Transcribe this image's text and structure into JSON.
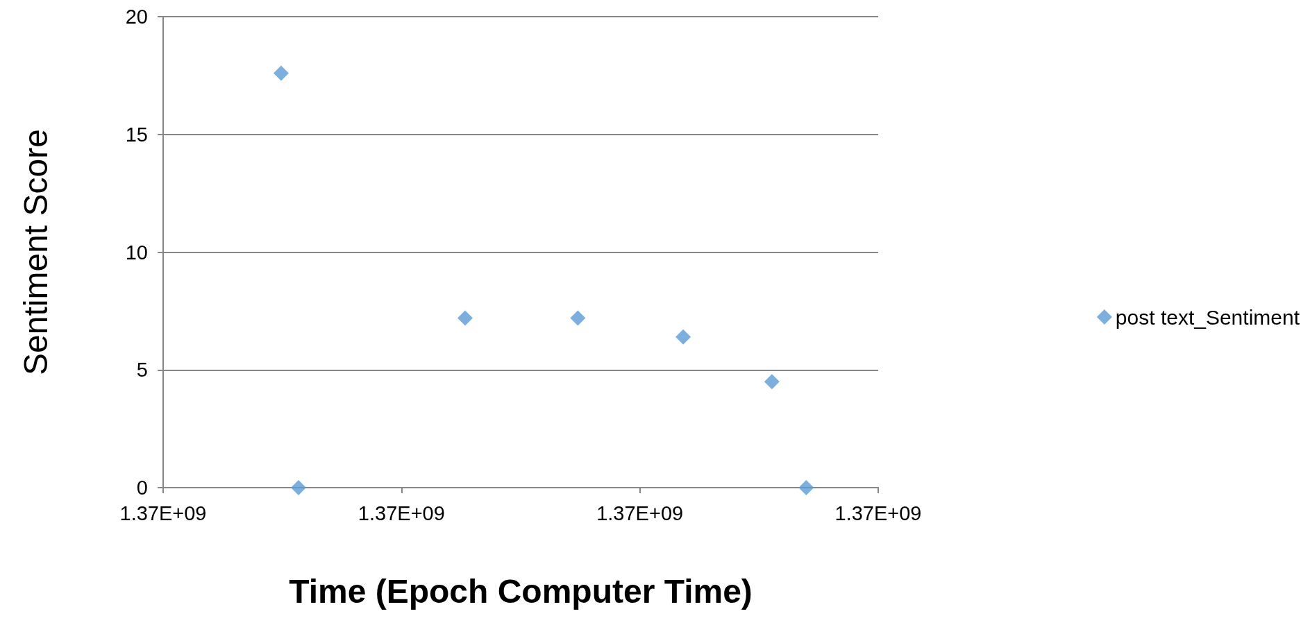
{
  "chart_data": {
    "type": "scatter",
    "xlabel": "Time (Epoch Computer Time)",
    "ylabel": "Sentiment Score",
    "x": [
      1370495000,
      1370568000,
      1371267000,
      1371740000,
      1372182000,
      1372554000,
      1372698000
    ],
    "series": [
      {
        "name": "post text_Sentiment",
        "color": "#5b9bd5",
        "values": [
          17.6,
          0,
          7.2,
          7.2,
          6.4,
          4.5,
          0
        ]
      }
    ],
    "xlim": [
      1370000000,
      1373000000
    ],
    "xticks": [
      {
        "value": 1370000000,
        "label": "1.37E+09"
      },
      {
        "value": 1371000000,
        "label": "1.37E+09"
      },
      {
        "value": 1372000000,
        "label": "1.37E+09"
      },
      {
        "value": 1373000000,
        "label": "1.37E+09"
      }
    ],
    "ylim": [
      0,
      20
    ],
    "yticks": [
      0,
      5,
      10,
      15,
      20
    ],
    "grid": "y",
    "legend": "right",
    "marker": "diamond"
  }
}
